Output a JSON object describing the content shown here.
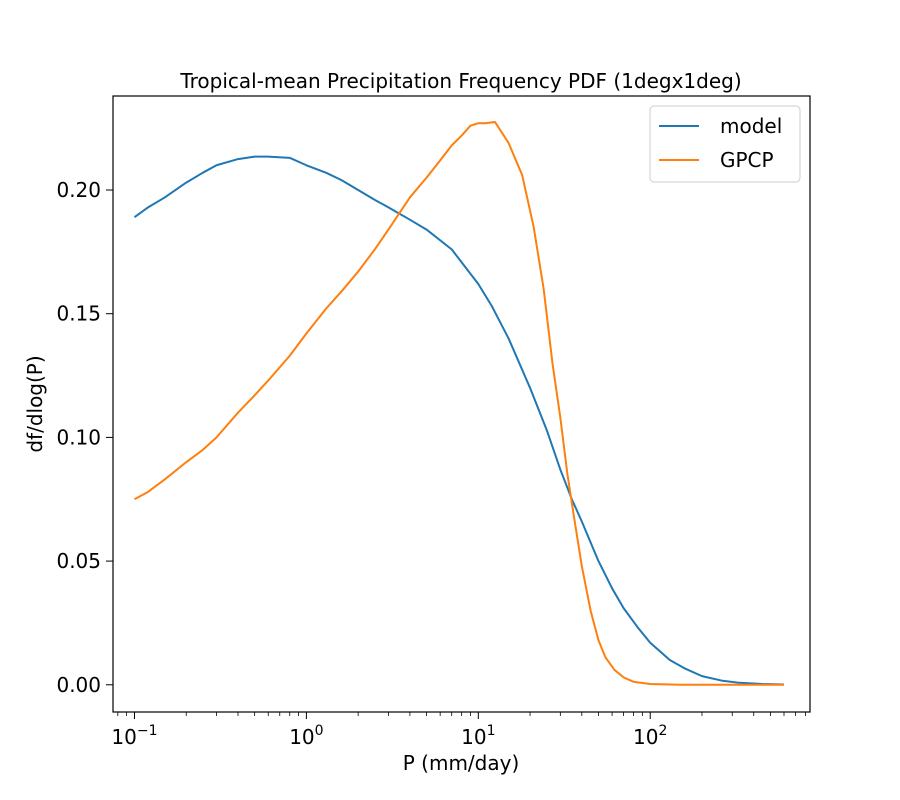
{
  "chart_data": {
    "type": "line",
    "title": "Tropical-mean Precipitation Frequency PDF (1degx1deg)",
    "xlabel": "P (mm/day)",
    "ylabel": "df/dlog(P)",
    "x_scale": "log",
    "xlim": [
      0.075,
      850
    ],
    "ylim": [
      -0.011,
      0.238
    ],
    "x_ticks": [
      0.1,
      1,
      10,
      100
    ],
    "x_tick_labels": [
      {
        "base": "10",
        "exp": "−1"
      },
      {
        "base": "10",
        "exp": "0"
      },
      {
        "base": "10",
        "exp": "1"
      },
      {
        "base": "10",
        "exp": "2"
      }
    ],
    "y_ticks": [
      0.0,
      0.05,
      0.1,
      0.15,
      0.2
    ],
    "y_tick_labels": [
      "0.00",
      "0.05",
      "0.10",
      "0.15",
      "0.20"
    ],
    "grid": false,
    "legend_position": "top-right",
    "series": [
      {
        "name": "model",
        "color": "#1f77b4",
        "points": [
          [
            0.1,
            0.189
          ],
          [
            0.12,
            0.193
          ],
          [
            0.15,
            0.197
          ],
          [
            0.2,
            0.203
          ],
          [
            0.25,
            0.207
          ],
          [
            0.3,
            0.21
          ],
          [
            0.4,
            0.2125
          ],
          [
            0.5,
            0.2135
          ],
          [
            0.6,
            0.2135
          ],
          [
            0.8,
            0.213
          ],
          [
            1.0,
            0.21
          ],
          [
            1.3,
            0.207
          ],
          [
            1.6,
            0.204
          ],
          [
            2.0,
            0.2
          ],
          [
            2.5,
            0.196
          ],
          [
            3.0,
            0.193
          ],
          [
            4.0,
            0.188
          ],
          [
            5.0,
            0.184
          ],
          [
            7.0,
            0.176
          ],
          [
            10.0,
            0.162
          ],
          [
            12.0,
            0.153
          ],
          [
            15.0,
            0.14
          ],
          [
            20.0,
            0.12
          ],
          [
            25.0,
            0.103
          ],
          [
            30.0,
            0.087
          ],
          [
            35.0,
            0.075
          ],
          [
            40.0,
            0.066
          ],
          [
            50.0,
            0.05
          ],
          [
            60.0,
            0.039
          ],
          [
            70.0,
            0.031
          ],
          [
            85.0,
            0.023
          ],
          [
            100.0,
            0.017
          ],
          [
            130.0,
            0.01
          ],
          [
            160.0,
            0.0065
          ],
          [
            200.0,
            0.0035
          ],
          [
            260.0,
            0.0017
          ],
          [
            330.0,
            0.0008
          ],
          [
            450.0,
            0.0003
          ],
          [
            600.0,
            0.0001
          ]
        ]
      },
      {
        "name": "GPCP",
        "color": "#ff7f0e",
        "points": [
          [
            0.1,
            0.075
          ],
          [
            0.12,
            0.078
          ],
          [
            0.15,
            0.083
          ],
          [
            0.2,
            0.09
          ],
          [
            0.25,
            0.095
          ],
          [
            0.3,
            0.1
          ],
          [
            0.4,
            0.11
          ],
          [
            0.5,
            0.117
          ],
          [
            0.6,
            0.123
          ],
          [
            0.8,
            0.133
          ],
          [
            1.0,
            0.142
          ],
          [
            1.3,
            0.152
          ],
          [
            1.6,
            0.159
          ],
          [
            2.0,
            0.167
          ],
          [
            2.5,
            0.176
          ],
          [
            3.0,
            0.184
          ],
          [
            4.0,
            0.197
          ],
          [
            5.0,
            0.205
          ],
          [
            6.0,
            0.212
          ],
          [
            7.0,
            0.218
          ],
          [
            8.0,
            0.222
          ],
          [
            9.0,
            0.226
          ],
          [
            10.0,
            0.227
          ],
          [
            11.0,
            0.227
          ],
          [
            12.5,
            0.2275
          ],
          [
            15.0,
            0.219
          ],
          [
            18.0,
            0.206
          ],
          [
            21.0,
            0.185
          ],
          [
            24.0,
            0.16
          ],
          [
            27.0,
            0.13
          ],
          [
            30.0,
            0.108
          ],
          [
            33.0,
            0.085
          ],
          [
            36.0,
            0.068
          ],
          [
            40.0,
            0.048
          ],
          [
            45.0,
            0.03
          ],
          [
            50.0,
            0.018
          ],
          [
            55.0,
            0.011
          ],
          [
            62.0,
            0.006
          ],
          [
            70.0,
            0.003
          ],
          [
            80.0,
            0.0012
          ],
          [
            100.0,
            0.0003
          ],
          [
            150.0,
            0.0
          ],
          [
            600.0,
            0.0
          ]
        ]
      }
    ]
  }
}
